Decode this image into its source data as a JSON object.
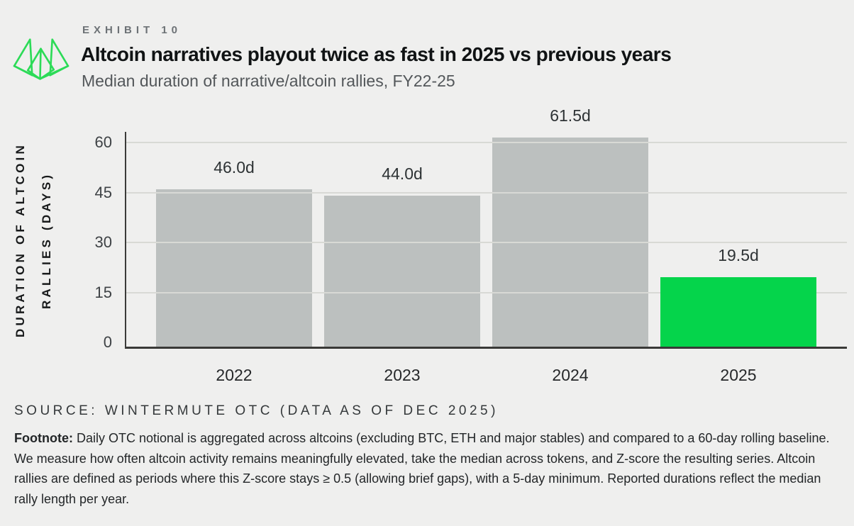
{
  "page": {
    "background": "#efefee"
  },
  "header": {
    "exhibit_label": "EXHIBIT 10",
    "title": "Altcoin narratives playout twice as fast in 2025 vs previous years",
    "subtitle": "Median duration of narrative/altcoin rallies, FY22-25",
    "logo": "wintermute-logo",
    "logo_color": "#2cdb57"
  },
  "chart_data": {
    "type": "bar",
    "title": "Altcoin narratives playout twice as fast in 2025 vs previous years",
    "subtitle": "Median duration of narrative/altcoin rallies, FY22-25",
    "categories": [
      "2022",
      "2023",
      "2024",
      "2025"
    ],
    "values": [
      46.0,
      44.0,
      61.5,
      19.5
    ],
    "bar_labels": [
      "46.0d",
      "44.0d",
      "61.5d",
      "19.5d"
    ],
    "unit": "days",
    "ylabel_line1": "DURATION OF ALTCOIN",
    "ylabel_line2": "RALLIES (DAYS)",
    "xlabel": "",
    "yticks": [
      0,
      15,
      30,
      45,
      60
    ],
    "ylim": [
      0,
      65
    ],
    "grid": true,
    "legend": false,
    "bar_color": "#bcc0bf",
    "highlight_color": "#05d44b",
    "highlight_index": 3,
    "grid_color": "#d8d9d5",
    "axis_color": "#3b3b39"
  },
  "source": {
    "text": "SOURCE: WINTERMUTE OTC (DATA AS OF DEC 2025)"
  },
  "footnote": {
    "label": "Footnote:",
    "text": " Daily OTC notional is aggregated across altcoins (excluding BTC, ETH and major stables) and compared to a 60-day rolling baseline. We measure how often altcoin activity remains meaningfully elevated, take the median across tokens, and Z-score the resulting series. Altcoin rallies are defined as periods where this Z-score stays ≥ 0.5 (allowing brief gaps), with a 5-day minimum. Reported durations reflect the median rally length per year."
  }
}
